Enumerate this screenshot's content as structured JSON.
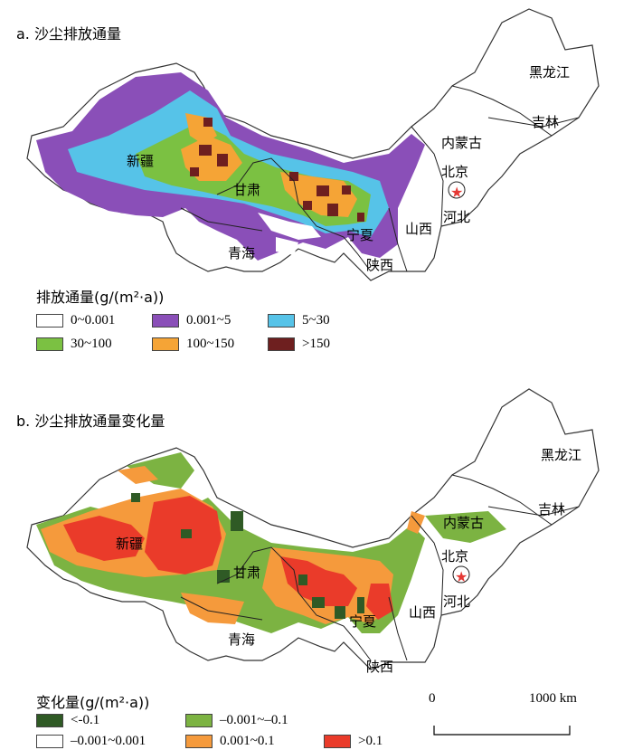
{
  "panel_a": {
    "title": "a. 沙尘排放通量",
    "legend_title": "排放通量(g/(m²·a))",
    "legend": [
      {
        "label": "0~0.001",
        "color": "#ffffff"
      },
      {
        "label": "0.001~5",
        "color": "#8a4fb8"
      },
      {
        "label": "5~30",
        "color": "#56c3e8"
      },
      {
        "label": "30~100",
        "color": "#7bc142"
      },
      {
        "label": "100~150",
        "color": "#f5a436"
      },
      {
        "label": ">150",
        "color": "#6e1f1f"
      }
    ]
  },
  "panel_b": {
    "title": "b. 沙尘排放通量变化量",
    "legend_title": "变化量(g/(m²·a))",
    "legend": [
      {
        "label": "<-0.1",
        "color": "#2f5a25"
      },
      {
        "label": "–0.001~–0.1",
        "color": "#7cb342"
      },
      {
        "label": "–0.001~0.001",
        "color": "#ffffff"
      },
      {
        "label": "0.001~0.1",
        "color": "#f59a3c"
      },
      {
        "label": ">0.1",
        "color": "#ea3b2a"
      }
    ],
    "scale": {
      "start": "0",
      "end": "1000 km"
    }
  },
  "regions": {
    "heilongjiang": "黑龙江",
    "jilin": "吉林",
    "neimenggu": "内蒙古",
    "beijing": "北京",
    "hebei": "河北",
    "shanxi": "山西",
    "shaanxi": "陕西",
    "ningxia": "宁夏",
    "gansu": "甘肃",
    "qinghai": "青海",
    "xinjiang": "新疆"
  }
}
